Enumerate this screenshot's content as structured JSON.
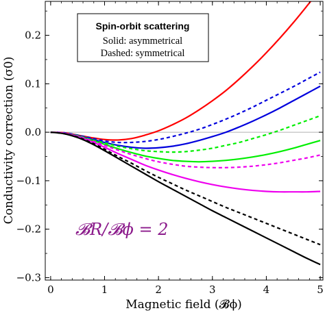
{
  "chart_data": {
    "type": "line",
    "xlabel": "Magnetic field (𝓑ϕ)",
    "ylabel": "Conductivity correction (σ0)",
    "xlim": [
      -0.1,
      5.05
    ],
    "ylim": [
      -0.305,
      0.27
    ],
    "x_ticks": [
      0,
      1,
      2,
      3,
      4,
      5
    ],
    "x_tick_labels": [
      "0",
      "1",
      "2",
      "3",
      "4",
      "5"
    ],
    "y_ticks": [
      -0.3,
      -0.2,
      -0.1,
      0.0,
      0.1,
      0.2
    ],
    "y_tick_labels": [
      "−0.3",
      "−0.2",
      "−0.1",
      "0.0",
      "0.1",
      "0.2"
    ],
    "grid": false,
    "zero_line": true,
    "legend": {
      "title": "Spin-orbit scattering",
      "lines": [
        "Solid: asymmetrical",
        "Dashed: symmetrical"
      ],
      "placement": "top-left"
    },
    "annotation": "𝓑R/𝓑ϕ = 2",
    "series": [
      {
        "color": "#ff0000",
        "style": "solid",
        "x": [
          0,
          0.25,
          0.5,
          0.75,
          1,
          1.25,
          1.5,
          1.75,
          2,
          2.25,
          2.5,
          2.75,
          3,
          3.25,
          3.5,
          3.75,
          4,
          4.25,
          4.5,
          4.75,
          5
        ],
        "y": [
          0,
          -0.001,
          -0.006,
          -0.011,
          -0.015,
          -0.016,
          -0.013,
          -0.006,
          0.003,
          0.015,
          0.029,
          0.046,
          0.065,
          0.086,
          0.11,
          0.136,
          0.164,
          0.194,
          0.226,
          0.26,
          0.295
        ]
      },
      {
        "color": "#0000dd",
        "style": "dashed",
        "x": [
          0,
          0.25,
          0.5,
          0.75,
          1,
          1.25,
          1.5,
          1.75,
          2,
          2.25,
          2.5,
          2.75,
          3,
          3.25,
          3.5,
          3.75,
          4,
          4.25,
          4.5,
          4.75,
          5
        ],
        "y": [
          0,
          -0.001,
          -0.006,
          -0.012,
          -0.018,
          -0.021,
          -0.021,
          -0.019,
          -0.015,
          -0.009,
          -0.002,
          0.006,
          0.016,
          0.027,
          0.039,
          0.052,
          0.066,
          0.08,
          0.094,
          0.109,
          0.124
        ]
      },
      {
        "color": "#0000dd",
        "style": "solid",
        "x": [
          0,
          0.25,
          0.5,
          0.75,
          1,
          1.25,
          1.5,
          1.75,
          2,
          2.25,
          2.5,
          2.75,
          3,
          3.25,
          3.5,
          3.75,
          4,
          4.25,
          4.5,
          4.75,
          5
        ],
        "y": [
          0,
          -0.002,
          -0.007,
          -0.014,
          -0.021,
          -0.027,
          -0.031,
          -0.033,
          -0.032,
          -0.029,
          -0.024,
          -0.017,
          -0.009,
          0.0,
          0.011,
          0.023,
          0.036,
          0.05,
          0.065,
          0.08,
          0.095
        ]
      },
      {
        "color": "#00ee00",
        "style": "dashed",
        "x": [
          0,
          0.25,
          0.5,
          0.75,
          1,
          1.25,
          1.5,
          1.75,
          2,
          2.25,
          2.5,
          2.75,
          3,
          3.25,
          3.5,
          3.75,
          4,
          4.25,
          4.5,
          4.75,
          5
        ],
        "y": [
          0,
          -0.002,
          -0.007,
          -0.015,
          -0.022,
          -0.029,
          -0.034,
          -0.038,
          -0.04,
          -0.041,
          -0.04,
          -0.037,
          -0.033,
          -0.027,
          -0.021,
          -0.013,
          -0.005,
          0.004,
          0.014,
          0.024,
          0.034
        ]
      },
      {
        "color": "#00ee00",
        "style": "solid",
        "x": [
          0,
          0.25,
          0.5,
          0.75,
          1,
          1.25,
          1.5,
          1.75,
          2,
          2.25,
          2.5,
          2.75,
          3,
          3.25,
          3.5,
          3.75,
          4,
          4.25,
          4.5,
          4.75,
          5
        ],
        "y": [
          0,
          -0.002,
          -0.008,
          -0.016,
          -0.025,
          -0.034,
          -0.042,
          -0.049,
          -0.054,
          -0.058,
          -0.06,
          -0.061,
          -0.06,
          -0.058,
          -0.055,
          -0.051,
          -0.046,
          -0.04,
          -0.033,
          -0.025,
          -0.017
        ]
      },
      {
        "color": "#ee00ee",
        "style": "dashed",
        "x": [
          0,
          0.25,
          0.5,
          0.75,
          1,
          1.25,
          1.5,
          1.75,
          2,
          2.25,
          2.5,
          2.75,
          3,
          3.25,
          3.5,
          3.75,
          4,
          4.25,
          4.5,
          4.75,
          5
        ],
        "y": [
          0,
          -0.002,
          -0.008,
          -0.017,
          -0.027,
          -0.037,
          -0.046,
          -0.054,
          -0.061,
          -0.066,
          -0.07,
          -0.072,
          -0.073,
          -0.073,
          -0.072,
          -0.07,
          -0.067,
          -0.063,
          -0.058,
          -0.053,
          -0.047
        ]
      },
      {
        "color": "#ee00ee",
        "style": "solid",
        "x": [
          0,
          0.25,
          0.5,
          0.75,
          1,
          1.25,
          1.5,
          1.75,
          2,
          2.25,
          2.5,
          2.75,
          3,
          3.25,
          3.5,
          3.75,
          4,
          4.25,
          4.5,
          4.75,
          5
        ],
        "y": [
          0,
          -0.002,
          -0.009,
          -0.019,
          -0.031,
          -0.044,
          -0.056,
          -0.068,
          -0.078,
          -0.087,
          -0.095,
          -0.102,
          -0.108,
          -0.113,
          -0.117,
          -0.12,
          -0.122,
          -0.123,
          -0.123,
          -0.123,
          -0.122
        ]
      },
      {
        "color": "#000000",
        "style": "dashed",
        "x": [
          0,
          0.25,
          0.5,
          0.75,
          1,
          1.25,
          1.5,
          1.75,
          2,
          2.25,
          2.5,
          2.75,
          3,
          3.25,
          3.5,
          3.75,
          4,
          4.25,
          4.5,
          4.75,
          5
        ],
        "y": [
          0,
          -0.003,
          -0.01,
          -0.021,
          -0.035,
          -0.05,
          -0.064,
          -0.079,
          -0.093,
          -0.106,
          -0.119,
          -0.131,
          -0.143,
          -0.155,
          -0.166,
          -0.177,
          -0.188,
          -0.199,
          -0.21,
          -0.221,
          -0.232
        ]
      },
      {
        "color": "#000000",
        "style": "solid",
        "x": [
          0,
          0.25,
          0.5,
          0.75,
          1,
          1.25,
          1.5,
          1.75,
          2,
          2.25,
          2.5,
          2.75,
          3,
          3.25,
          3.5,
          3.75,
          4,
          4.25,
          4.5,
          4.75,
          5
        ],
        "y": [
          0,
          -0.003,
          -0.011,
          -0.023,
          -0.038,
          -0.054,
          -0.07,
          -0.086,
          -0.102,
          -0.117,
          -0.132,
          -0.147,
          -0.162,
          -0.176,
          -0.19,
          -0.204,
          -0.218,
          -0.232,
          -0.246,
          -0.26,
          -0.273
        ]
      }
    ]
  }
}
